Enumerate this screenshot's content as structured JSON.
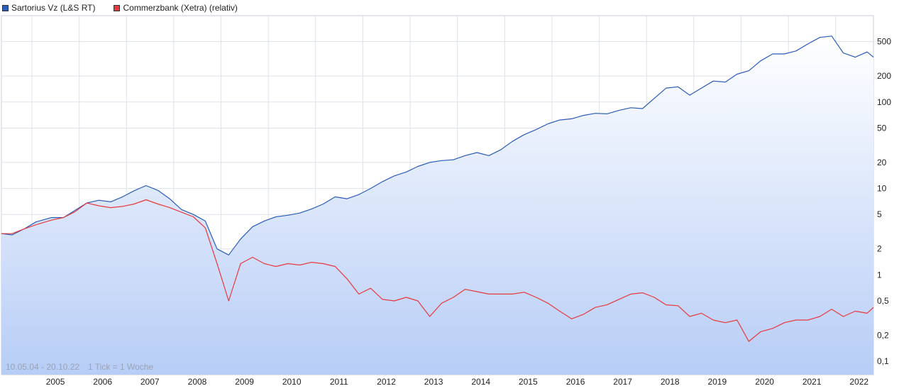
{
  "chart_data": {
    "type": "line",
    "title": "",
    "xlabel": "",
    "ylabel": "",
    "y_scale": "log",
    "grid": true,
    "legend_placement": "top-left",
    "date_range_label": "10.05.04 - 20.10.22",
    "tick_note": "1 Tick = 1 Woche",
    "x_tick_labels": [
      "2005",
      "2006",
      "2007",
      "2008",
      "2009",
      "2010",
      "2011",
      "2012",
      "2013",
      "2014",
      "2015",
      "2016",
      "2017",
      "2018",
      "2019",
      "2020",
      "2021",
      "2022"
    ],
    "y_tick_labels": [
      "500",
      "200",
      "100",
      "50",
      "20",
      "10",
      "5",
      "2",
      "1",
      "0,5",
      "0,2",
      "0,1"
    ],
    "y_tick_values": [
      500,
      200,
      100,
      50,
      20,
      10,
      5,
      2,
      1,
      0.5,
      0.2,
      0.1
    ],
    "xlim": [
      "2004-05-10",
      "2022-10-20"
    ],
    "ylim": [
      0.07,
      1000
    ],
    "series": [
      {
        "name": "Sartorius Vz (L&S RT)",
        "color": "#2b5cb8",
        "points": [
          [
            "2004-05-10",
            3.0
          ],
          [
            "2004-08-01",
            2.9
          ],
          [
            "2004-11-01",
            3.4
          ],
          [
            "2005-02-01",
            4.1
          ],
          [
            "2005-06-01",
            4.6
          ],
          [
            "2005-09-01",
            4.6
          ],
          [
            "2005-12-01",
            5.6
          ],
          [
            "2006-03-01",
            6.8
          ],
          [
            "2006-06-01",
            7.3
          ],
          [
            "2006-09-01",
            7.0
          ],
          [
            "2006-12-01",
            8.0
          ],
          [
            "2007-03-01",
            9.4
          ],
          [
            "2007-06-01",
            10.8
          ],
          [
            "2007-09-01",
            9.5
          ],
          [
            "2007-12-01",
            7.6
          ],
          [
            "2008-03-01",
            5.7
          ],
          [
            "2008-06-01",
            5.0
          ],
          [
            "2008-09-01",
            4.2
          ],
          [
            "2008-12-01",
            2.0
          ],
          [
            "2009-03-01",
            1.7
          ],
          [
            "2009-06-01",
            2.6
          ],
          [
            "2009-09-01",
            3.6
          ],
          [
            "2009-12-01",
            4.2
          ],
          [
            "2010-03-01",
            4.7
          ],
          [
            "2010-06-01",
            4.9
          ],
          [
            "2010-09-01",
            5.2
          ],
          [
            "2010-12-01",
            5.8
          ],
          [
            "2011-03-01",
            6.6
          ],
          [
            "2011-06-01",
            8.0
          ],
          [
            "2011-09-01",
            7.6
          ],
          [
            "2011-12-01",
            8.5
          ],
          [
            "2012-03-01",
            10.0
          ],
          [
            "2012-06-01",
            12.0
          ],
          [
            "2012-09-01",
            14.0
          ],
          [
            "2012-12-01",
            15.5
          ],
          [
            "2013-03-01",
            18.0
          ],
          [
            "2013-06-01",
            20.0
          ],
          [
            "2013-09-01",
            21.0
          ],
          [
            "2013-12-01",
            21.5
          ],
          [
            "2014-03-01",
            24.0
          ],
          [
            "2014-06-01",
            26.0
          ],
          [
            "2014-09-01",
            24.0
          ],
          [
            "2014-12-01",
            28.0
          ],
          [
            "2015-03-01",
            35.0
          ],
          [
            "2015-06-01",
            42.0
          ],
          [
            "2015-09-01",
            48.0
          ],
          [
            "2015-12-01",
            56.0
          ],
          [
            "2016-03-01",
            62.0
          ],
          [
            "2016-06-01",
            64.0
          ],
          [
            "2016-09-01",
            70.0
          ],
          [
            "2016-12-01",
            74.0
          ],
          [
            "2017-03-01",
            73.0
          ],
          [
            "2017-06-01",
            80.0
          ],
          [
            "2017-09-01",
            86.0
          ],
          [
            "2017-12-01",
            84.0
          ],
          [
            "2018-03-01",
            110.0
          ],
          [
            "2018-06-01",
            145.0
          ],
          [
            "2018-09-01",
            150.0
          ],
          [
            "2018-12-01",
            120.0
          ],
          [
            "2019-03-01",
            145.0
          ],
          [
            "2019-06-01",
            175.0
          ],
          [
            "2019-09-01",
            170.0
          ],
          [
            "2019-12-01",
            210.0
          ],
          [
            "2020-03-01",
            230.0
          ],
          [
            "2020-06-01",
            300.0
          ],
          [
            "2020-09-01",
            360.0
          ],
          [
            "2020-12-01",
            360.0
          ],
          [
            "2021-03-01",
            390.0
          ],
          [
            "2021-06-01",
            470.0
          ],
          [
            "2021-09-01",
            560.0
          ],
          [
            "2021-12-01",
            580.0
          ],
          [
            "2022-03-01",
            370.0
          ],
          [
            "2022-06-01",
            330.0
          ],
          [
            "2022-09-01",
            380.0
          ],
          [
            "2022-10-20",
            330.0
          ]
        ]
      },
      {
        "name": "Commerzbank (Xetra) (relativ)",
        "color": "#e8393e",
        "points": [
          [
            "2004-05-10",
            3.0
          ],
          [
            "2004-08-01",
            3.0
          ],
          [
            "2004-11-01",
            3.4
          ],
          [
            "2005-02-01",
            3.8
          ],
          [
            "2005-06-01",
            4.3
          ],
          [
            "2005-09-01",
            4.6
          ],
          [
            "2005-12-01",
            5.4
          ],
          [
            "2006-03-01",
            6.8
          ],
          [
            "2006-06-01",
            6.3
          ],
          [
            "2006-09-01",
            6.0
          ],
          [
            "2006-12-01",
            6.2
          ],
          [
            "2007-03-01",
            6.6
          ],
          [
            "2007-06-01",
            7.4
          ],
          [
            "2007-09-01",
            6.6
          ],
          [
            "2007-12-01",
            6.0
          ],
          [
            "2008-03-01",
            5.3
          ],
          [
            "2008-06-01",
            4.7
          ],
          [
            "2008-09-01",
            3.5
          ],
          [
            "2008-12-01",
            1.35
          ],
          [
            "2009-03-01",
            0.5
          ],
          [
            "2009-06-01",
            1.35
          ],
          [
            "2009-09-01",
            1.6
          ],
          [
            "2009-12-01",
            1.35
          ],
          [
            "2010-03-01",
            1.25
          ],
          [
            "2010-06-01",
            1.35
          ],
          [
            "2010-09-01",
            1.3
          ],
          [
            "2010-12-01",
            1.4
          ],
          [
            "2011-03-01",
            1.35
          ],
          [
            "2011-06-01",
            1.25
          ],
          [
            "2011-09-01",
            0.9
          ],
          [
            "2011-12-01",
            0.6
          ],
          [
            "2012-03-01",
            0.7
          ],
          [
            "2012-06-01",
            0.52
          ],
          [
            "2012-09-01",
            0.5
          ],
          [
            "2012-12-01",
            0.55
          ],
          [
            "2013-03-01",
            0.5
          ],
          [
            "2013-06-01",
            0.33
          ],
          [
            "2013-09-01",
            0.47
          ],
          [
            "2013-12-01",
            0.55
          ],
          [
            "2014-03-01",
            0.68
          ],
          [
            "2014-06-01",
            0.64
          ],
          [
            "2014-09-01",
            0.6
          ],
          [
            "2014-12-01",
            0.6
          ],
          [
            "2015-03-01",
            0.6
          ],
          [
            "2015-06-01",
            0.63
          ],
          [
            "2015-09-01",
            0.55
          ],
          [
            "2015-12-01",
            0.47
          ],
          [
            "2016-03-01",
            0.38
          ],
          [
            "2016-06-01",
            0.31
          ],
          [
            "2016-09-01",
            0.35
          ],
          [
            "2016-12-01",
            0.42
          ],
          [
            "2017-03-01",
            0.45
          ],
          [
            "2017-06-01",
            0.52
          ],
          [
            "2017-09-01",
            0.6
          ],
          [
            "2017-12-01",
            0.62
          ],
          [
            "2018-03-01",
            0.55
          ],
          [
            "2018-06-01",
            0.45
          ],
          [
            "2018-09-01",
            0.44
          ],
          [
            "2018-12-01",
            0.33
          ],
          [
            "2019-03-01",
            0.36
          ],
          [
            "2019-06-01",
            0.3
          ],
          [
            "2019-09-01",
            0.28
          ],
          [
            "2019-12-01",
            0.3
          ],
          [
            "2020-03-01",
            0.17
          ],
          [
            "2020-06-01",
            0.22
          ],
          [
            "2020-09-01",
            0.24
          ],
          [
            "2020-12-01",
            0.28
          ],
          [
            "2021-03-01",
            0.3
          ],
          [
            "2021-06-01",
            0.3
          ],
          [
            "2021-09-01",
            0.33
          ],
          [
            "2021-12-01",
            0.4
          ],
          [
            "2022-03-01",
            0.33
          ],
          [
            "2022-06-01",
            0.38
          ],
          [
            "2022-09-01",
            0.36
          ],
          [
            "2022-10-20",
            0.42
          ]
        ]
      }
    ]
  }
}
